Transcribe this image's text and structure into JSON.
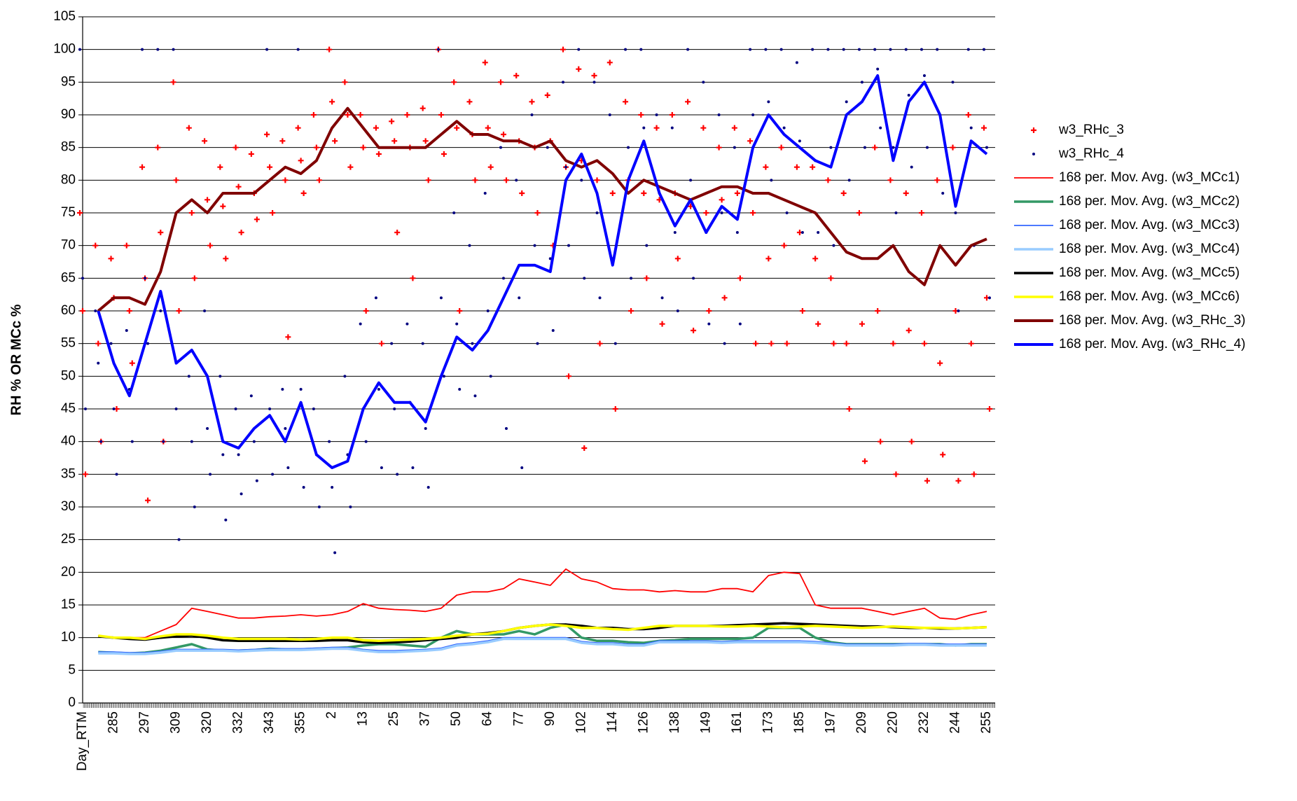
{
  "chart_data": {
    "type": "line",
    "y_axis_label": "RH % OR MCc %",
    "ylim": [
      0,
      105
    ],
    "yticks": [
      0,
      5,
      10,
      15,
      20,
      25,
      30,
      35,
      40,
      45,
      50,
      55,
      60,
      65,
      70,
      75,
      80,
      85,
      90,
      95,
      100,
      105
    ],
    "grid": true,
    "legend": "right",
    "categories": [
      "Day_RTM",
      null,
      "285",
      null,
      "297",
      null,
      "309",
      null,
      "320",
      null,
      "332",
      null,
      "343",
      null,
      "355",
      null,
      "2",
      null,
      "13",
      null,
      "25",
      null,
      "37",
      null,
      "50",
      null,
      "64",
      null,
      "77",
      null,
      "90",
      null,
      "102",
      null,
      "114",
      null,
      "126",
      null,
      "138",
      null,
      "149",
      null,
      "161",
      null,
      "173",
      null,
      "185",
      null,
      "197",
      null,
      "209",
      null,
      "220",
      null,
      "232",
      null,
      "244",
      null,
      "255"
    ],
    "series": [
      {
        "name": "w3_RHc_3",
        "type": "scatter",
        "marker": "plus",
        "color": "#ff0000",
        "values": [
          [
            75,
            60,
            35
          ],
          [
            70,
            55,
            40
          ],
          [
            68,
            62,
            45
          ],
          [
            70,
            60,
            52
          ],
          [
            82,
            65,
            31
          ],
          [
            85,
            72,
            40
          ],
          [
            95,
            80,
            60
          ],
          [
            88,
            75,
            65
          ],
          [
            86,
            77,
            70
          ],
          [
            82,
            76,
            68
          ],
          [
            85,
            79,
            72
          ],
          [
            84,
            78,
            74
          ],
          [
            87,
            82,
            75
          ],
          [
            86,
            80,
            56
          ],
          [
            88,
            83,
            78
          ],
          [
            90,
            85,
            80
          ],
          [
            100,
            92,
            86
          ],
          [
            95,
            90,
            82
          ],
          [
            90,
            85,
            60
          ],
          [
            88,
            84,
            55
          ],
          [
            89,
            86,
            72
          ],
          [
            90,
            85,
            65
          ],
          [
            91,
            86,
            80
          ],
          [
            100,
            90,
            84
          ],
          [
            95,
            88,
            60
          ],
          [
            92,
            87,
            80
          ],
          [
            98,
            88,
            82
          ],
          [
            95,
            87,
            80
          ],
          [
            96,
            86,
            78
          ],
          [
            92,
            85,
            75
          ],
          [
            93,
            86,
            70
          ],
          [
            100,
            82,
            50
          ],
          [
            97,
            83,
            39
          ],
          [
            96,
            80,
            55
          ],
          [
            98,
            78,
            45
          ],
          [
            92,
            80,
            60
          ],
          [
            90,
            78,
            65
          ],
          [
            88,
            77,
            58
          ],
          [
            90,
            78,
            68
          ],
          [
            92,
            76,
            57
          ],
          [
            88,
            75,
            60
          ],
          [
            85,
            77,
            62
          ],
          [
            88,
            78,
            65
          ],
          [
            86,
            75,
            55
          ],
          [
            82,
            68,
            55
          ],
          [
            85,
            70,
            55
          ],
          [
            82,
            72,
            60
          ],
          [
            82,
            68,
            58
          ],
          [
            80,
            65,
            55
          ],
          [
            78,
            55,
            45
          ],
          [
            75,
            58,
            37
          ],
          [
            85,
            60,
            40
          ],
          [
            80,
            55,
            35
          ],
          [
            78,
            57,
            40
          ],
          [
            75,
            55,
            34
          ],
          [
            80,
            52,
            38
          ],
          [
            85,
            60,
            34
          ],
          [
            90,
            55,
            35
          ],
          [
            88,
            62,
            45
          ]
        ]
      },
      {
        "name": "w3_RHc_4",
        "type": "scatter",
        "marker": "dot",
        "color": "#000080",
        "values": [
          [
            100,
            65,
            45
          ],
          [
            60,
            52,
            40
          ],
          [
            55,
            45,
            35
          ],
          [
            57,
            48,
            40
          ],
          [
            100,
            65,
            55
          ],
          [
            100,
            60,
            40
          ],
          [
            100,
            45,
            25
          ],
          [
            50,
            40,
            30
          ],
          [
            60,
            42,
            35
          ],
          [
            50,
            38,
            28
          ],
          [
            45,
            38,
            32
          ],
          [
            47,
            40,
            34
          ],
          [
            100,
            45,
            35
          ],
          [
            48,
            42,
            36
          ],
          [
            100,
            48,
            33
          ],
          [
            45,
            38,
            30
          ],
          [
            40,
            33,
            23
          ],
          [
            50,
            38,
            30
          ],
          [
            58,
            45,
            40
          ],
          [
            62,
            48,
            36
          ],
          [
            55,
            45,
            35
          ],
          [
            58,
            46,
            36
          ],
          [
            55,
            42,
            33
          ],
          [
            100,
            62,
            50
          ],
          [
            75,
            58,
            48
          ],
          [
            70,
            55,
            47
          ],
          [
            78,
            60,
            50
          ],
          [
            85,
            65,
            42
          ],
          [
            80,
            62,
            36
          ],
          [
            90,
            70,
            55
          ],
          [
            85,
            68,
            57
          ],
          [
            95,
            82,
            70
          ],
          [
            100,
            80,
            65
          ],
          [
            95,
            75,
            62
          ],
          [
            90,
            68,
            55
          ],
          [
            100,
            85,
            65
          ],
          [
            100,
            88,
            70
          ],
          [
            90,
            78,
            62
          ],
          [
            88,
            72,
            60
          ],
          [
            100,
            80,
            65
          ],
          [
            95,
            72,
            58
          ],
          [
            90,
            75,
            55
          ],
          [
            85,
            72,
            58
          ],
          [
            100,
            90,
            78
          ],
          [
            100,
            92,
            80
          ],
          [
            100,
            88,
            75
          ],
          [
            98,
            86,
            72
          ],
          [
            100,
            83,
            72
          ],
          [
            100,
            85,
            70
          ],
          [
            100,
            92,
            80
          ],
          [
            100,
            95,
            85
          ],
          [
            100,
            97,
            88
          ],
          [
            100,
            85,
            75
          ],
          [
            100,
            93,
            82
          ],
          [
            100,
            96,
            85
          ],
          [
            100,
            90,
            78
          ],
          [
            95,
            75,
            60
          ],
          [
            100,
            88,
            70
          ],
          [
            100,
            85,
            62
          ]
        ]
      },
      {
        "name": "168 per. Mov. Avg. (w3_MCc1)",
        "type": "line",
        "color": "#ff0000",
        "width": 1.8,
        "values": [
          null,
          10.3,
          10,
          10,
          10,
          11,
          12,
          14.5,
          14,
          13.5,
          13,
          13,
          13.2,
          13.3,
          13.5,
          13.3,
          13.5,
          14,
          15.2,
          14.5,
          14.3,
          14.2,
          14,
          14.5,
          16.5,
          17,
          17,
          17.5,
          19,
          18.5,
          18,
          20.5,
          19,
          18.5,
          17.5,
          17.3,
          17.3,
          17,
          17.2,
          17,
          17,
          17.5,
          17.5,
          17,
          19.5,
          20,
          19.8,
          15,
          14.5,
          14.5,
          14.5,
          14,
          13.5,
          14,
          14.5,
          13,
          12.8,
          13.5,
          14
        ]
      },
      {
        "name": "168 per. Mov. Avg. (w3_MCc2)",
        "type": "line",
        "color": "#339966",
        "width": 3.5,
        "values": [
          null,
          7.8,
          7.7,
          7.6,
          7.7,
          8,
          8.5,
          9,
          8.2,
          8,
          8,
          8.1,
          8.3,
          8.2,
          8.2,
          8.3,
          8.4,
          8.5,
          8.8,
          9,
          9,
          8.8,
          8.6,
          10,
          11,
          10.5,
          10.5,
          10.5,
          11,
          10.5,
          11.5,
          12,
          10,
          9.5,
          9.5,
          9.3,
          9.2,
          9.5,
          9.6,
          9.8,
          9.8,
          9.8,
          9.8,
          10,
          11.5,
          11.5,
          11.5,
          10,
          9.3,
          9,
          9,
          9,
          9,
          9,
          9,
          9,
          8.8,
          9,
          9
        ]
      },
      {
        "name": "168 per. Mov. Avg. (w3_MCc3)",
        "type": "line",
        "color": "#3366ff",
        "width": 1.8,
        "values": [
          null,
          7.8,
          7.8,
          7.7,
          7.7,
          7.9,
          8.2,
          8.2,
          8.2,
          8.2,
          8.1,
          8.2,
          8.3,
          8.3,
          8.3,
          8.4,
          8.5,
          8.5,
          8.2,
          8,
          8,
          8.1,
          8.2,
          8.4,
          9,
          9.2,
          9.5,
          10,
          10,
          10,
          10,
          10,
          9.4,
          9.2,
          9.2,
          9,
          9,
          9.5,
          9.5,
          9.5,
          9.5,
          9.4,
          9.5,
          9.5,
          9.5,
          9.5,
          9.5,
          9.4,
          9.2,
          9,
          9,
          9,
          9,
          9.1,
          9.1,
          9,
          9,
          9,
          9
        ]
      },
      {
        "name": "168 per. Mov. Avg. (w3_MCc4)",
        "type": "line",
        "color": "#99ccff",
        "width": 3.5,
        "values": [
          null,
          7.6,
          7.6,
          7.5,
          7.5,
          7.7,
          8,
          8,
          8,
          8,
          7.9,
          8,
          8.1,
          8.1,
          8.1,
          8.2,
          8.3,
          8.3,
          8,
          7.8,
          7.8,
          7.9,
          8,
          8.2,
          8.8,
          9,
          9.3,
          9.8,
          9.8,
          9.8,
          9.8,
          9.8,
          9.2,
          9,
          9,
          8.8,
          8.8,
          9.3,
          9.3,
          9.3,
          9.3,
          9.2,
          9.3,
          9.3,
          9.3,
          9.3,
          9.3,
          9.2,
          9,
          8.8,
          8.8,
          8.8,
          8.8,
          8.9,
          8.9,
          8.8,
          8.8,
          8.8,
          8.8
        ]
      },
      {
        "name": "168 per. Mov. Avg. (w3_MCc5)",
        "type": "line",
        "color": "#000000",
        "width": 3.5,
        "values": [
          null,
          10.2,
          10,
          9.8,
          9.7,
          10,
          10.2,
          10.3,
          10,
          9.6,
          9.5,
          9.5,
          9.5,
          9.5,
          9.5,
          9.5,
          9.6,
          9.6,
          9.3,
          9.2,
          9.3,
          9.4,
          9.6,
          9.8,
          10,
          10.5,
          10.7,
          11,
          11.5,
          11.8,
          12,
          12,
          11.8,
          11.5,
          11.5,
          11.3,
          11.3,
          11.5,
          11.8,
          11.8,
          11.8,
          11.8,
          11.9,
          12,
          12.1,
          12.2,
          12.1,
          12,
          11.9,
          11.8,
          11.7,
          11.7,
          11.6,
          11.5,
          11.5,
          11.4,
          11.4,
          11.5,
          11.6
        ]
      },
      {
        "name": "168 per. Mov. Avg. (w3_MCc6)",
        "type": "line",
        "color": "#ffff00",
        "width": 3.5,
        "values": [
          null,
          10.3,
          10,
          10,
          9.8,
          10.2,
          10.5,
          10.5,
          10.3,
          10,
          9.8,
          9.8,
          9.8,
          9.8,
          9.7,
          9.8,
          10,
          10,
          9.6,
          9.5,
          9.6,
          9.7,
          9.8,
          10,
          10.3,
          10.5,
          10.6,
          11,
          11.5,
          11.8,
          12,
          11.8,
          11.5,
          11.5,
          11.3,
          11.2,
          11.5,
          11.8,
          11.8,
          11.8,
          11.8,
          11.7,
          11.7,
          11.8,
          11.7,
          11.6,
          11.7,
          11.8,
          11.7,
          11.6,
          11.5,
          11.6,
          11.7,
          11.6,
          11.5,
          11.5,
          11.4,
          11.5,
          11.6
        ]
      },
      {
        "name": "168 per. Mov. Avg. (w3_RHc_3)",
        "type": "line",
        "color": "#800000",
        "width": 4,
        "values": [
          null,
          60,
          62,
          62,
          61,
          66,
          75,
          77,
          75,
          78,
          78,
          78,
          80,
          82,
          81,
          83,
          88,
          91,
          88,
          85,
          85,
          85,
          85,
          87,
          89,
          87,
          87,
          86,
          86,
          85,
          86,
          83,
          82,
          83,
          81,
          78,
          80,
          79,
          78,
          77,
          78,
          79,
          79,
          78,
          78,
          77,
          76,
          75,
          72,
          69,
          68,
          68,
          70,
          66,
          64,
          70,
          67,
          70,
          71
        ]
      },
      {
        "name": "168 per. Mov. Avg. (w3_RHc_4)",
        "type": "line",
        "color": "#0000ff",
        "width": 4,
        "values": [
          null,
          60,
          52,
          47,
          55,
          63,
          52,
          54,
          50,
          40,
          39,
          42,
          44,
          40,
          46,
          38,
          36,
          37,
          45,
          49,
          46,
          46,
          43,
          50,
          56,
          54,
          57,
          62,
          67,
          67,
          66,
          80,
          84,
          78,
          67,
          80,
          86,
          78,
          73,
          77,
          72,
          76,
          74,
          85,
          90,
          87,
          85,
          83,
          82,
          90,
          92,
          96,
          83,
          92,
          95,
          90,
          76,
          86,
          84
        ]
      }
    ]
  }
}
